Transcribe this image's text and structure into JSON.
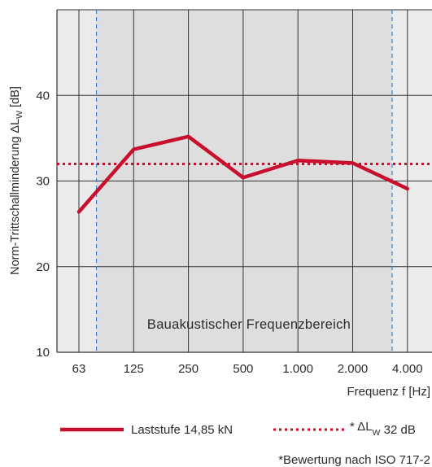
{
  "chart_data": {
    "type": "line",
    "ylabel_main": "Norm-Trittschallminderung  ΔL",
    "ylabel_sub": "W",
    "ylabel_unit": " [dB]",
    "xlabel": "Frequenz f [Hz]",
    "categories": [
      "63",
      "125",
      "250",
      "500",
      "1.000",
      "2.000",
      "4.000"
    ],
    "y_ticks": [
      10,
      20,
      30,
      40
    ],
    "ylim": [
      10,
      50
    ],
    "grid": true,
    "band_label": "Bauakustischer Frequenzbereich",
    "band_range_index": [
      0.32,
      5.72
    ],
    "series": [
      {
        "name": "Laststufe 14,85 kN",
        "color": "#c8102e",
        "x_index": [
          0,
          1,
          2,
          3,
          4,
          5,
          6
        ],
        "values": [
          26.4,
          33.7,
          35.2,
          30.4,
          32.4,
          32.1,
          29.1
        ]
      }
    ],
    "reference_line": {
      "label_prefix": "* ΔL",
      "label_sub": "W",
      "label_suffix": " 32 dB",
      "value": 32,
      "color": "#c8102e"
    },
    "footnote": "*Bewertung nach ISO 717-2"
  }
}
